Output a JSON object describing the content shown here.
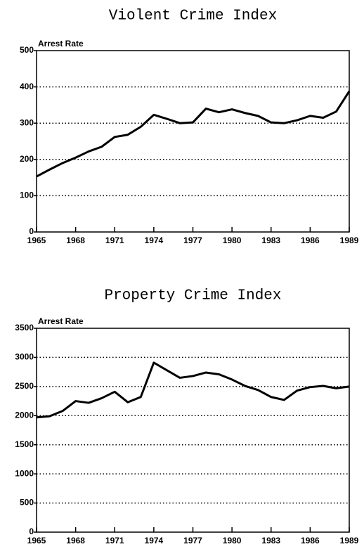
{
  "chart_data": [
    {
      "type": "line",
      "title": "Violent Crime Index",
      "y_label": "Arrest Rate",
      "x": [
        1965,
        1966,
        1967,
        1968,
        1969,
        1970,
        1971,
        1972,
        1973,
        1974,
        1975,
        1976,
        1977,
        1978,
        1979,
        1980,
        1981,
        1982,
        1983,
        1984,
        1985,
        1986,
        1987,
        1988,
        1989
      ],
      "series": [
        {
          "name": "Violent Crime Index",
          "color": "#000000",
          "values": [
            153,
            172,
            190,
            205,
            222,
            235,
            262,
            268,
            290,
            323,
            312,
            300,
            302,
            340,
            330,
            338,
            328,
            320,
            302,
            300,
            308,
            320,
            315,
            332,
            388
          ]
        }
      ],
      "xlim": [
        1965,
        1989
      ],
      "xticks": [
        1965,
        1968,
        1971,
        1974,
        1977,
        1980,
        1983,
        1986,
        1989
      ],
      "ylim": [
        0,
        500
      ],
      "yticks": [
        0,
        100,
        200,
        300,
        400,
        500
      ],
      "grid": true
    },
    {
      "type": "line",
      "title": "Property Crime Index",
      "y_label": "Arrest Rate",
      "x": [
        1965,
        1966,
        1967,
        1968,
        1969,
        1970,
        1971,
        1972,
        1973,
        1974,
        1975,
        1976,
        1977,
        1978,
        1979,
        1980,
        1981,
        1982,
        1983,
        1984,
        1985,
        1986,
        1987,
        1988,
        1989
      ],
      "series": [
        {
          "name": "Property Crime Index",
          "color": "#000000",
          "values": [
            1970,
            1990,
            2080,
            2250,
            2220,
            2300,
            2410,
            2230,
            2320,
            2910,
            2780,
            2650,
            2680,
            2740,
            2710,
            2620,
            2510,
            2440,
            2320,
            2270,
            2430,
            2490,
            2510,
            2470,
            2500
          ]
        }
      ],
      "xlim": [
        1965,
        1989
      ],
      "xticks": [
        1965,
        1968,
        1971,
        1974,
        1977,
        1980,
        1983,
        1986,
        1989
      ],
      "ylim": [
        0,
        3500
      ],
      "yticks": [
        0,
        500,
        1000,
        1500,
        2000,
        2500,
        3000,
        3500
      ],
      "grid": true
    }
  ]
}
